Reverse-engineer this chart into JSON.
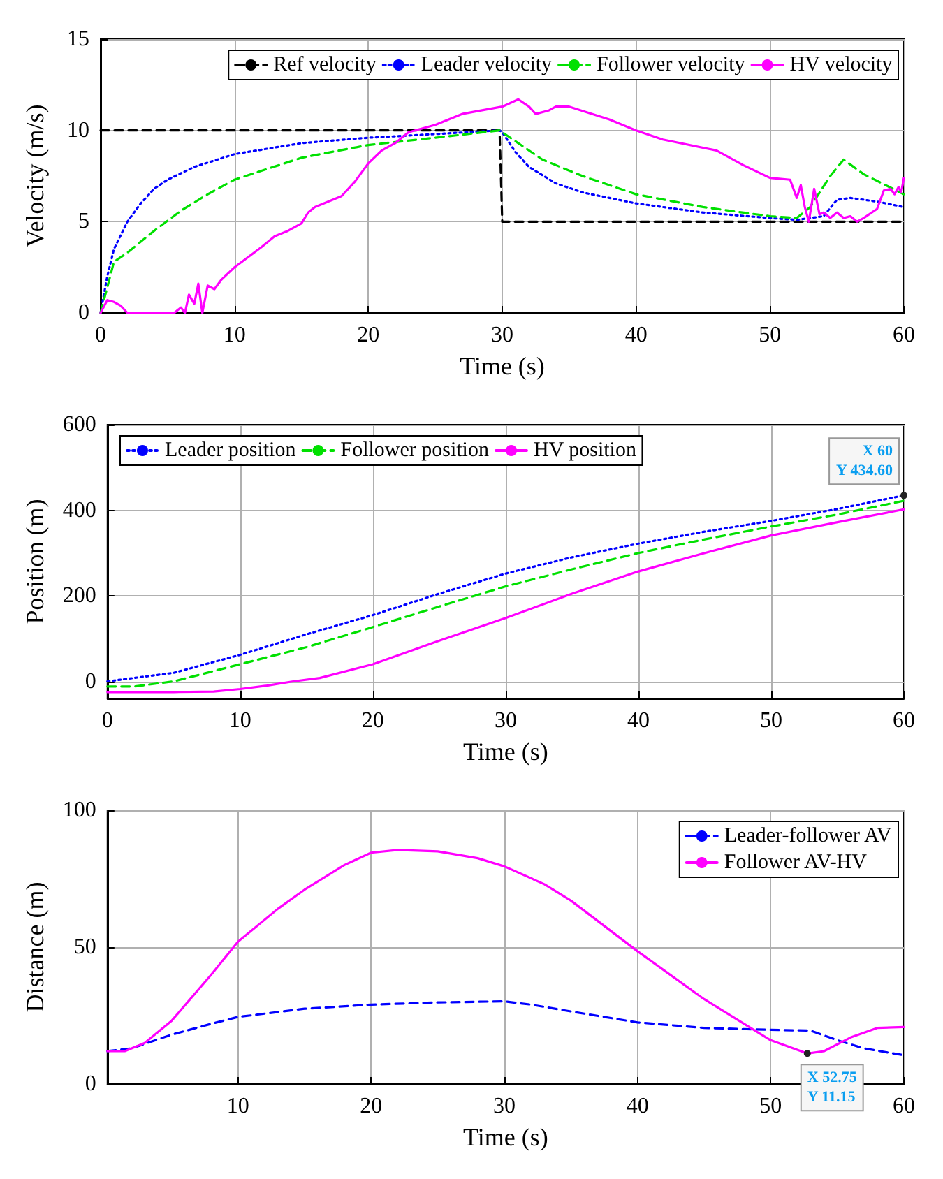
{
  "chart_data": [
    {
      "type": "line",
      "xlabel": "Time (s)",
      "ylabel": "Velocity (m/s)",
      "xlim": [
        0,
        60
      ],
      "xticks": [
        0,
        10,
        20,
        30,
        40,
        50,
        60
      ],
      "ylim": [
        0,
        15
      ],
      "yticks": [
        0,
        5,
        10,
        15
      ],
      "grid": true,
      "legend": "top right",
      "series": [
        {
          "name": "Ref velocity",
          "color": "#000000",
          "line_style": "dashed",
          "x": [
            0,
            29.8,
            30,
            60
          ],
          "values": [
            10,
            10,
            5,
            5
          ]
        },
        {
          "name": "Leader velocity",
          "color": "#0000ff",
          "line_style": "dotted",
          "x": [
            0,
            0.5,
            1,
            2,
            3,
            4,
            5,
            7,
            10,
            15,
            20,
            25,
            29.8,
            30,
            31,
            32,
            34,
            36,
            40,
            45,
            50,
            52,
            54,
            55,
            56,
            58,
            60
          ],
          "values": [
            0,
            2,
            3.5,
            5,
            6,
            6.8,
            7.3,
            8,
            8.7,
            9.3,
            9.6,
            9.8,
            10,
            9.9,
            8.8,
            8,
            7.1,
            6.6,
            6,
            5.5,
            5.2,
            5.1,
            5.3,
            6.2,
            6.3,
            6.1,
            5.8
          ]
        },
        {
          "name": "Follower velocity",
          "color": "#00e000",
          "line_style": "dashed",
          "x": [
            0,
            1,
            2,
            4,
            6,
            8,
            10,
            15,
            20,
            25,
            29.8,
            31,
            33,
            36,
            40,
            45,
            50,
            52,
            53,
            54.5,
            55.5,
            57,
            60
          ],
          "values": [
            0,
            2.8,
            3.3,
            4.5,
            5.6,
            6.5,
            7.3,
            8.5,
            9.2,
            9.6,
            10,
            9.4,
            8.4,
            7.5,
            6.5,
            5.8,
            5.3,
            5.2,
            5.8,
            7.5,
            8.4,
            7.6,
            6.5
          ]
        },
        {
          "name": "HV velocity",
          "color": "#ff00ff",
          "line_style": "solid",
          "x": [
            0,
            0.5,
            1,
            1.5,
            2,
            5.5,
            6,
            6.3,
            6.6,
            7,
            7.3,
            7.6,
            8,
            8.5,
            9,
            10,
            12,
            13,
            14,
            15,
            15.5,
            16,
            18,
            19,
            20,
            21,
            22,
            23,
            25,
            27,
            30,
            31.2,
            32,
            32.5,
            33.5,
            34,
            35,
            38,
            40,
            42,
            46,
            48,
            50,
            51.5,
            52,
            52.3,
            52.6,
            52.9,
            53.3,
            53.7,
            54,
            54.5,
            55,
            55.5,
            56,
            56.5,
            57,
            58,
            58.5,
            59,
            59.3,
            59.6,
            59.8,
            60
          ],
          "values": [
            0,
            0.7,
            0.6,
            0.4,
            0,
            0,
            0.3,
            0,
            1,
            0.5,
            1.6,
            0,
            1.5,
            1.3,
            1.8,
            2.5,
            3.6,
            4.2,
            4.5,
            4.9,
            5.5,
            5.8,
            6.4,
            7.2,
            8.2,
            8.9,
            9.3,
            9.9,
            10.3,
            10.9,
            11.3,
            11.7,
            11.3,
            10.9,
            11.1,
            11.3,
            11.3,
            10.6,
            10,
            9.5,
            8.9,
            8.1,
            7.4,
            7.3,
            6.3,
            7,
            5.8,
            5,
            6.8,
            5.4,
            5.5,
            5.2,
            5.5,
            5.2,
            5.3,
            5,
            5.2,
            5.7,
            6.7,
            6.8,
            6.5,
            6.9,
            6.6,
            7.4
          ]
        }
      ]
    },
    {
      "type": "line",
      "xlabel": "Time (s)",
      "ylabel": "Position (m)",
      "xlim": [
        0,
        60
      ],
      "xticks": [
        0,
        10,
        20,
        30,
        40,
        50,
        60
      ],
      "ylim": [
        -40,
        600
      ],
      "yticks": [
        0,
        200,
        400,
        600
      ],
      "grid": true,
      "legend": "top left",
      "annotations": [
        {
          "text": "X 60\nY 434.60",
          "x": 60,
          "y": 434.6
        }
      ],
      "series": [
        {
          "name": "Leader position",
          "color": "#0000ff",
          "line_style": "dotted",
          "x": [
            0,
            5,
            10,
            15,
            20,
            25,
            30,
            35,
            40,
            45,
            50,
            55,
            60
          ],
          "values": [
            0,
            20,
            62,
            110,
            155,
            205,
            252,
            290,
            322,
            350,
            375,
            403,
            434.6
          ]
        },
        {
          "name": "Follower position",
          "color": "#00e000",
          "line_style": "dashed",
          "x": [
            0,
            2,
            5,
            10,
            15,
            20,
            25,
            30,
            35,
            40,
            45,
            50,
            55,
            60
          ],
          "values": [
            -12,
            -12,
            0,
            40,
            80,
            127,
            175,
            222,
            262,
            300,
            332,
            362,
            390,
            422
          ]
        },
        {
          "name": "HV position",
          "color": "#ff00ff",
          "line_style": "solid",
          "x": [
            0,
            5,
            8,
            10,
            12,
            14,
            16,
            20,
            25,
            30,
            35,
            40,
            45,
            50,
            55,
            60
          ],
          "values": [
            -25,
            -25,
            -24,
            -18,
            -10,
            0,
            8,
            40,
            95,
            148,
            205,
            257,
            300,
            341,
            372,
            402
          ]
        }
      ]
    },
    {
      "type": "line",
      "xlabel": "Time (s)",
      "ylabel": "Distance (m)",
      "xlim": [
        0.2,
        60
      ],
      "xticks": [
        10,
        20,
        30,
        40,
        50,
        60
      ],
      "ylim": [
        0,
        100
      ],
      "yticks": [
        0,
        50,
        100
      ],
      "grid": true,
      "legend": "top right",
      "annotations": [
        {
          "text": "X 52.75\nY 11.15",
          "x": 52.75,
          "y": 11.15
        }
      ],
      "series": [
        {
          "name": "Leader-follower AV",
          "color": "#0000ff",
          "line_style": "dashed",
          "x": [
            0.2,
            2,
            5,
            8,
            10,
            15,
            20,
            25,
            30,
            32,
            35,
            40,
            45,
            50,
            53,
            55,
            57,
            60
          ],
          "values": [
            12,
            13,
            18,
            22,
            24.5,
            27.5,
            29,
            29.8,
            30.2,
            29,
            26.5,
            22.5,
            20.5,
            19.8,
            19.5,
            16,
            13,
            10.5
          ]
        },
        {
          "name": "Follower AV-HV",
          "color": "#ff00ff",
          "line_style": "solid",
          "x": [
            0.2,
            1.5,
            3,
            5,
            8,
            10,
            13,
            15,
            18,
            20,
            22,
            25,
            28,
            30,
            33,
            35,
            40,
            45,
            50,
            52.75,
            54,
            56,
            58,
            60
          ],
          "values": [
            12,
            12,
            15,
            23,
            40,
            52,
            64,
            71,
            80,
            84.5,
            85.5,
            85,
            82.5,
            79.5,
            73,
            67,
            48.5,
            31,
            16,
            11.15,
            12,
            17,
            20.5,
            20.8
          ]
        }
      ]
    }
  ]
}
